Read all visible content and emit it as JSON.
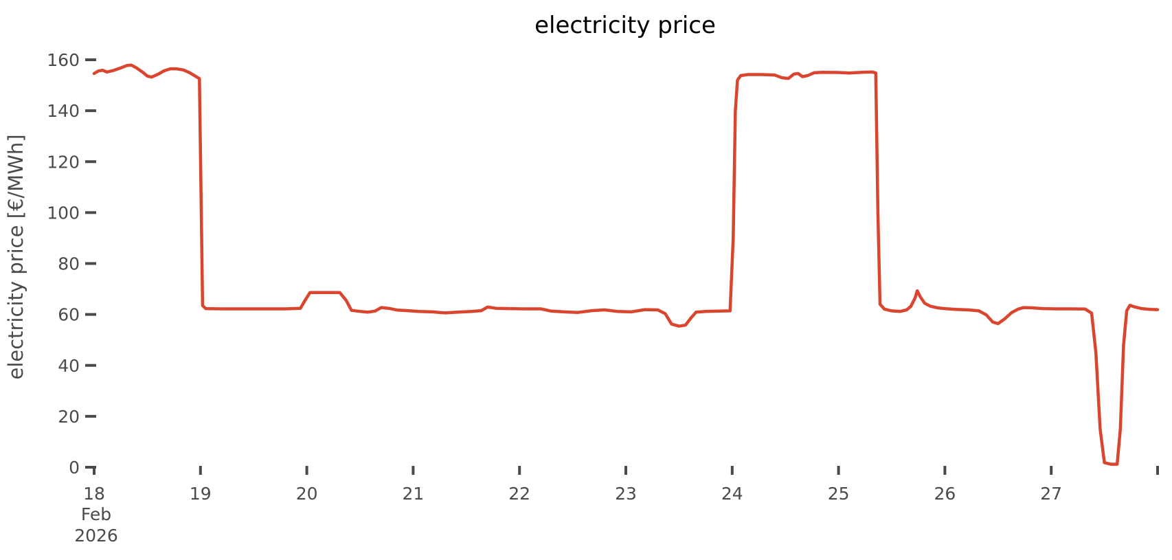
{
  "chart_data": {
    "type": "line",
    "title": "electricity price",
    "ylabel": "electricity price [€/MWh]",
    "xlabel": "",
    "grid": false,
    "legend": false,
    "background": "#ffffff",
    "line_color": "#d9452e",
    "text_color": "#4a4a4a",
    "title_color": "#000000",
    "x_axis": {
      "range": [
        18,
        28
      ],
      "ticks": [
        {
          "pos": 18,
          "label": "18",
          "sublabels": [
            "Feb",
            "2026"
          ]
        },
        {
          "pos": 19,
          "label": "19"
        },
        {
          "pos": 20,
          "label": "20"
        },
        {
          "pos": 21,
          "label": "21"
        },
        {
          "pos": 22,
          "label": "22"
        },
        {
          "pos": 23,
          "label": "23"
        },
        {
          "pos": 24,
          "label": "24"
        },
        {
          "pos": 25,
          "label": "25"
        },
        {
          "pos": 26,
          "label": "26"
        },
        {
          "pos": 27,
          "label": "27"
        },
        {
          "pos": 28,
          "label": ""
        }
      ]
    },
    "y_axis": {
      "range": [
        0,
        160
      ],
      "ticks": [
        0,
        20,
        40,
        60,
        80,
        100,
        120,
        140,
        160
      ]
    },
    "series": [
      {
        "name": "electricity price",
        "unit": "€/MWh",
        "x_unit": "day of Feb 2026",
        "points": [
          [
            18.0,
            154.6
          ],
          [
            18.04,
            155.6
          ],
          [
            18.08,
            155.9
          ],
          [
            18.12,
            155.2
          ],
          [
            18.18,
            155.8
          ],
          [
            18.25,
            156.8
          ],
          [
            18.31,
            157.8
          ],
          [
            18.35,
            157.9
          ],
          [
            18.4,
            156.8
          ],
          [
            18.46,
            155.0
          ],
          [
            18.5,
            153.6
          ],
          [
            18.54,
            153.2
          ],
          [
            18.6,
            154.3
          ],
          [
            18.66,
            155.7
          ],
          [
            18.72,
            156.5
          ],
          [
            18.78,
            156.4
          ],
          [
            18.84,
            156.0
          ],
          [
            18.9,
            154.9
          ],
          [
            18.95,
            153.6
          ],
          [
            18.99,
            152.6
          ],
          [
            19.02,
            63.5
          ],
          [
            19.05,
            62.3
          ],
          [
            19.2,
            62.2
          ],
          [
            19.5,
            62.2
          ],
          [
            19.8,
            62.2
          ],
          [
            19.94,
            62.4
          ],
          [
            19.99,
            66.0
          ],
          [
            20.03,
            68.6
          ],
          [
            20.15,
            68.6
          ],
          [
            20.31,
            68.6
          ],
          [
            20.37,
            65.5
          ],
          [
            20.42,
            61.6
          ],
          [
            20.5,
            61.2
          ],
          [
            20.57,
            60.9
          ],
          [
            20.64,
            61.3
          ],
          [
            20.7,
            62.7
          ],
          [
            20.77,
            62.4
          ],
          [
            20.85,
            61.7
          ],
          [
            20.95,
            61.5
          ],
          [
            21.05,
            61.2
          ],
          [
            21.18,
            61.0
          ],
          [
            21.3,
            60.6
          ],
          [
            21.42,
            60.9
          ],
          [
            21.55,
            61.2
          ],
          [
            21.64,
            61.5
          ],
          [
            21.7,
            62.9
          ],
          [
            21.78,
            62.4
          ],
          [
            21.9,
            62.3
          ],
          [
            22.05,
            62.2
          ],
          [
            22.2,
            62.2
          ],
          [
            22.3,
            61.3
          ],
          [
            22.42,
            61.0
          ],
          [
            22.55,
            60.8
          ],
          [
            22.68,
            61.5
          ],
          [
            22.8,
            61.8
          ],
          [
            22.92,
            61.2
          ],
          [
            23.05,
            61.0
          ],
          [
            23.18,
            61.9
          ],
          [
            23.3,
            61.8
          ],
          [
            23.37,
            60.3
          ],
          [
            23.43,
            56.2
          ],
          [
            23.5,
            55.4
          ],
          [
            23.56,
            55.8
          ],
          [
            23.61,
            58.5
          ],
          [
            23.66,
            60.9
          ],
          [
            23.75,
            61.2
          ],
          [
            23.87,
            61.3
          ],
          [
            23.98,
            61.4
          ],
          [
            24.01,
            90.0
          ],
          [
            24.03,
            140.0
          ],
          [
            24.05,
            152.0
          ],
          [
            24.08,
            153.8
          ],
          [
            24.15,
            154.2
          ],
          [
            24.28,
            154.2
          ],
          [
            24.4,
            154.0
          ],
          [
            24.47,
            152.9
          ],
          [
            24.53,
            152.7
          ],
          [
            24.58,
            154.4
          ],
          [
            24.62,
            154.6
          ],
          [
            24.66,
            153.4
          ],
          [
            24.71,
            153.8
          ],
          [
            24.77,
            154.9
          ],
          [
            24.85,
            155.1
          ],
          [
            25.0,
            155.0
          ],
          [
            25.1,
            154.8
          ],
          [
            25.22,
            155.1
          ],
          [
            25.32,
            155.2
          ],
          [
            25.35,
            154.8
          ],
          [
            25.37,
            100.0
          ],
          [
            25.39,
            64.0
          ],
          [
            25.43,
            62.1
          ],
          [
            25.5,
            61.4
          ],
          [
            25.58,
            61.2
          ],
          [
            25.64,
            61.8
          ],
          [
            25.68,
            63.2
          ],
          [
            25.72,
            66.5
          ],
          [
            25.74,
            69.3
          ],
          [
            25.77,
            66.8
          ],
          [
            25.81,
            64.4
          ],
          [
            25.86,
            63.3
          ],
          [
            25.93,
            62.6
          ],
          [
            26.0,
            62.3
          ],
          [
            26.1,
            62.0
          ],
          [
            26.22,
            61.8
          ],
          [
            26.32,
            61.4
          ],
          [
            26.39,
            59.8
          ],
          [
            26.45,
            57.0
          ],
          [
            26.5,
            56.4
          ],
          [
            26.56,
            58.2
          ],
          [
            26.63,
            60.8
          ],
          [
            26.69,
            62.1
          ],
          [
            26.74,
            62.7
          ],
          [
            26.82,
            62.6
          ],
          [
            26.92,
            62.3
          ],
          [
            27.05,
            62.2
          ],
          [
            27.2,
            62.2
          ],
          [
            27.32,
            62.1
          ],
          [
            27.38,
            60.5
          ],
          [
            27.42,
            45.0
          ],
          [
            27.46,
            15.0
          ],
          [
            27.5,
            1.8
          ],
          [
            27.56,
            1.2
          ],
          [
            27.62,
            1.2
          ],
          [
            27.65,
            15.0
          ],
          [
            27.68,
            48.0
          ],
          [
            27.71,
            61.5
          ],
          [
            27.74,
            63.6
          ],
          [
            27.78,
            63.0
          ],
          [
            27.85,
            62.3
          ],
          [
            27.93,
            62.0
          ],
          [
            28.0,
            61.9
          ]
        ]
      }
    ]
  }
}
